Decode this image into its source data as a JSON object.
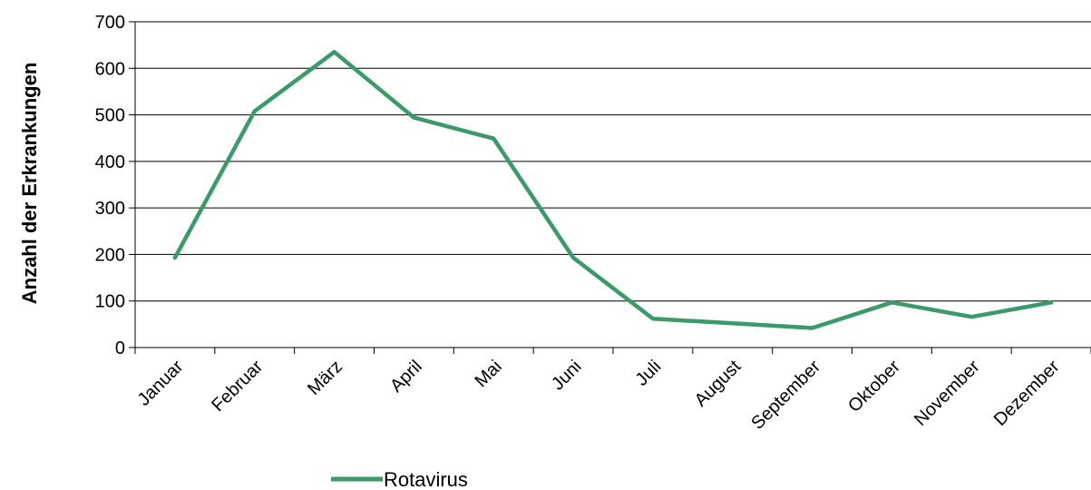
{
  "chart_data": {
    "type": "line",
    "categories": [
      "Januar",
      "Februar",
      "März",
      "April",
      "Mai",
      "Juni",
      "Juli",
      "August",
      "September",
      "Oktober",
      "November",
      "Dezember"
    ],
    "series": [
      {
        "name": "Rotavirus",
        "values": [
          193,
          508,
          635,
          494,
          449,
          193,
          62,
          52,
          42,
          97,
          66,
          97
        ],
        "color": "#3a9a6a"
      }
    ],
    "ylabel": "Anzahl der Erkrankungen",
    "ylim": [
      0,
      700
    ],
    "yticks": [
      0,
      100,
      200,
      300,
      400,
      500,
      600,
      700
    ],
    "grid": true,
    "legend": "bottom"
  }
}
